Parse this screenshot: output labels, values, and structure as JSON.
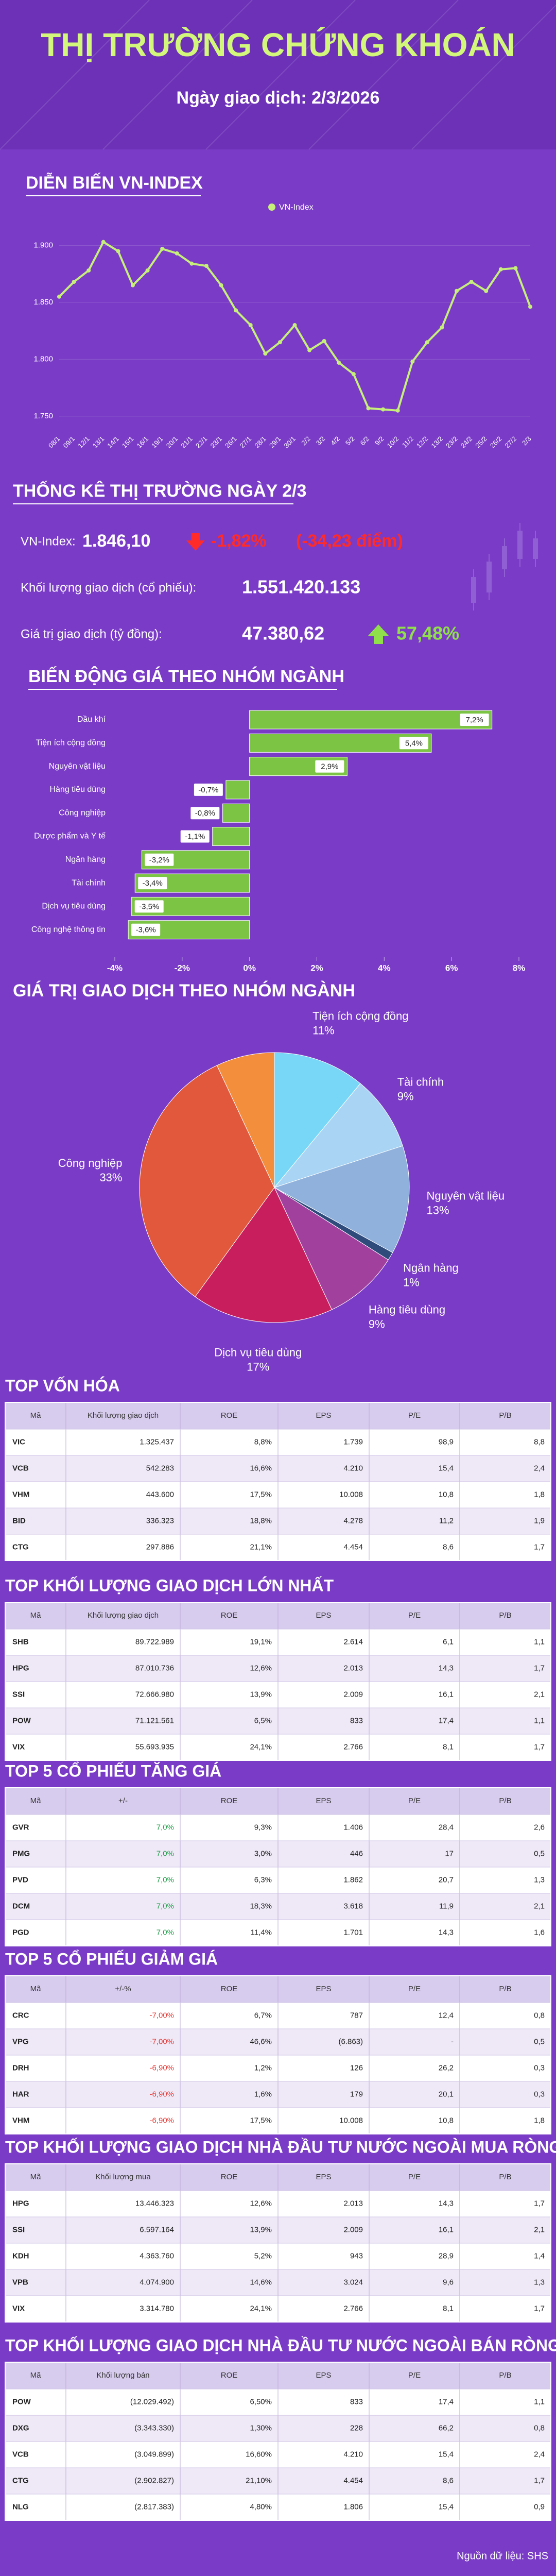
{
  "header": {
    "title": "THỊ TRƯỜNG CHỨNG KHOÁN",
    "date": "Ngày giao dịch: 2/3/2026"
  },
  "chart_data": [
    {
      "type": "line",
      "title": "DIỄN BIẾN VN-INDEX",
      "x": [
        "08/1",
        "09/1",
        "12/1",
        "13/1",
        "14/1",
        "15/1",
        "16/1",
        "19/1",
        "20/1",
        "21/1",
        "22/1",
        "23/1",
        "26/1",
        "27/1",
        "28/1",
        "29/1",
        "30/1",
        "2/2",
        "3/2",
        "4/2",
        "5/2",
        "6/2",
        "9/2",
        "10/2",
        "11/2",
        "12/2",
        "13/2",
        "23/2",
        "24/2",
        "25/2",
        "26/2",
        "27/2",
        "2/3"
      ],
      "series": [
        {
          "name": "VN-Index",
          "color": "#c6f07a",
          "values": [
            1855,
            1868,
            1878,
            1903,
            1895,
            1865,
            1878,
            1897,
            1893,
            1884,
            1882,
            1865,
            1843,
            1830,
            1805,
            1815,
            1830,
            1808,
            1816,
            1797,
            1787,
            1757,
            1756,
            1755,
            1798,
            1815,
            1828,
            1860,
            1868,
            1860,
            1879,
            1880,
            1846.1
          ]
        }
      ],
      "ylim": [
        1740,
        1930
      ],
      "yticks": [
        {
          "value": 1750,
          "label": "1.750"
        },
        {
          "value": 1800,
          "label": "1.800"
        },
        {
          "value": 1850,
          "label": "1.850"
        },
        {
          "value": 1900,
          "label": "1.900"
        }
      ],
      "grid": true,
      "legend": "top"
    },
    {
      "type": "bar",
      "orientation": "horizontal",
      "title": "BIẾN ĐỘNG GIÁ THEO NHÓM NGÀNH",
      "categories": [
        "Dầu khí",
        "Tiện ích cộng đồng",
        "Nguyên vật liệu",
        "Hàng tiêu dùng",
        "Công nghiệp",
        "Dược phẩm và Y tế",
        "Ngân hàng",
        "Tài chính",
        "Dịch vụ tiêu dùng",
        "Công nghệ thông tin"
      ],
      "values": [
        7.2,
        5.4,
        2.9,
        -0.7,
        -0.8,
        -1.1,
        -3.2,
        -3.4,
        -3.5,
        -3.6
      ],
      "value_labels": [
        "7,2%",
        "5,4%",
        "2,9%",
        "-0,7%",
        "-0,8%",
        "-1,1%",
        "-3,2%",
        "-3,4%",
        "-3,5%",
        "-3,6%"
      ],
      "color": "#7cc444",
      "xlim": [
        -4,
        8
      ],
      "xticks": [
        {
          "value": -4,
          "label": "-4%"
        },
        {
          "value": -2,
          "label": "-2%"
        },
        {
          "value": 0,
          "label": "0%"
        },
        {
          "value": 2,
          "label": "2%"
        },
        {
          "value": 4,
          "label": "4%"
        },
        {
          "value": 6,
          "label": "6%"
        },
        {
          "value": 8,
          "label": "8%"
        }
      ]
    },
    {
      "type": "pie",
      "title": "GIÁ TRỊ GIAO DỊCH THEO NHÓM NGÀNH",
      "categories": [
        "Tiện ích cộng đồng",
        "Tài chính",
        "Nguyên vật liệu",
        "Ngân hàng",
        "Hàng tiêu dùng",
        "Dịch vụ tiêu dùng",
        "Công nghiệp",
        null
      ],
      "values": [
        11,
        9,
        13,
        1,
        9,
        17,
        33,
        7
      ],
      "value_labels": [
        "11%",
        "9%",
        "13%",
        "1%",
        "9%",
        "17%",
        "33%",
        null
      ],
      "colors": [
        "#78d6f6",
        "#a9d4f4",
        "#8fb1dc",
        "#2f4b7c",
        "#a2409e",
        "#c81e5e",
        "#e2583c",
        "#f28e3c"
      ]
    }
  ],
  "stats": {
    "title": "THỐNG KÊ THỊ TRƯỜNG NGÀY 2/3",
    "rows": [
      {
        "label": "VN-Index:",
        "value": "1.846,10",
        "change": "-1,82%",
        "points": "(-34,23 điểm)",
        "change_color": "#ff2a2a"
      },
      {
        "label": "Khối lượng giao dịch (cổ phiếu):",
        "value": "1.551.420.133"
      },
      {
        "label": "Giá trị giao dịch (tỷ đồng):",
        "value": "47.380,62",
        "change": "57,48%",
        "change_color": "#8fe04a"
      }
    ]
  },
  "tables": [
    {
      "title": "TOP VỐN HÓA",
      "headers": [
        "Mã",
        "Khối lượng giao dịch",
        "ROE",
        "EPS",
        "P/E",
        "P/B"
      ],
      "rows": [
        [
          "VIC",
          "1.325.437",
          "8,8%",
          "1.739",
          "98,9",
          "8,8"
        ],
        [
          "VCB",
          "542.283",
          "16,6%",
          "4.210",
          "15,4",
          "2,4"
        ],
        [
          "VHM",
          "443.600",
          "17,5%",
          "10.008",
          "10,8",
          "1,8"
        ],
        [
          "BID",
          "336.323",
          "18,8%",
          "4.278",
          "11,2",
          "1,9"
        ],
        [
          "CTG",
          "297.886",
          "21,1%",
          "4.454",
          "8,6",
          "1,7"
        ]
      ]
    },
    {
      "title": "TOP KHỐI LƯỢNG GIAO DỊCH LỚN NHẤT",
      "headers": [
        "Mã",
        "Khối lượng giao dịch",
        "ROE",
        "EPS",
        "P/E",
        "P/B"
      ],
      "rows": [
        [
          "SHB",
          "89.722.989",
          "19,1%",
          "2.614",
          "6,1",
          "1,1"
        ],
        [
          "HPG",
          "87.010.736",
          "12,6%",
          "2.013",
          "14,3",
          "1,7"
        ],
        [
          "SSI",
          "72.666.980",
          "13,9%",
          "2.009",
          "16,1",
          "2,1"
        ],
        [
          "POW",
          "71.121.561",
          "6,5%",
          "833",
          "17,4",
          "1,1"
        ],
        [
          "VIX",
          "55.693.935",
          "24,1%",
          "2.766",
          "8,1",
          "1,7"
        ]
      ]
    },
    {
      "title": "TOP 5 CỔ PHIẾU TĂNG GIÁ",
      "headers": [
        "Mã",
        "+/-",
        "ROE",
        "EPS",
        "P/E",
        "P/B"
      ],
      "change_color": "#1f9e48",
      "rows": [
        [
          "GVR",
          "7,0%",
          "9,3%",
          "1.406",
          "28,4",
          "2,6"
        ],
        [
          "PMG",
          "7,0%",
          "3,0%",
          "446",
          "17",
          "0,5"
        ],
        [
          "PVD",
          "7,0%",
          "6,3%",
          "1.862",
          "20,7",
          "1,3"
        ],
        [
          "DCM",
          "7,0%",
          "18,3%",
          "3.618",
          "11,9",
          "2,1"
        ],
        [
          "PGD",
          "7,0%",
          "11,4%",
          "1.701",
          "14,3",
          "1,6"
        ]
      ]
    },
    {
      "title": "TOP 5 CỔ PHIẾU GIẢM GIÁ",
      "headers": [
        "Mã",
        "+/-%",
        "ROE",
        "EPS",
        "P/E",
        "P/B"
      ],
      "change_color": "#e53935",
      "rows": [
        [
          "CRC",
          "-7,00%",
          "6,7%",
          "787",
          "12,4",
          "0,8"
        ],
        [
          "VPG",
          "-7,00%",
          "46,6%",
          "(6.863)",
          "-",
          "0,5"
        ],
        [
          "DRH",
          "-6,90%",
          "1,2%",
          "126",
          "26,2",
          "0,3"
        ],
        [
          "HAR",
          "-6,90%",
          "1,6%",
          "179",
          "20,1",
          "0,3"
        ],
        [
          "VHM",
          "-6,90%",
          "17,5%",
          "10.008",
          "10,8",
          "1,8"
        ]
      ]
    },
    {
      "title": "TOP KHỐI LƯỢNG GIAO DỊCH NHÀ ĐẦU TƯ NƯỚC NGOÀI MUA RÒNG",
      "headers": [
        "Mã",
        "Khối lượng mua",
        "ROE",
        "EPS",
        "P/E",
        "P/B"
      ],
      "rows": [
        [
          "HPG",
          "13.446.323",
          "12,6%",
          "2.013",
          "14,3",
          "1,7"
        ],
        [
          "SSI",
          "6.597.164",
          "13,9%",
          "2.009",
          "16,1",
          "2,1"
        ],
        [
          "KDH",
          "4.363.760",
          "5,2%",
          "943",
          "28,9",
          "1,4"
        ],
        [
          "VPB",
          "4.074.900",
          "14,6%",
          "3.024",
          "9,6",
          "1,3"
        ],
        [
          "VIX",
          "3.314.780",
          "24,1%",
          "2.766",
          "8,1",
          "1,7"
        ]
      ]
    },
    {
      "title": "TOP KHỐI LƯỢNG GIAO DỊCH NHÀ ĐẦU TƯ NƯỚC NGOÀI BÁN RÒNG",
      "headers": [
        "Mã",
        "Khối lượng bán",
        "ROE",
        "EPS",
        "P/E",
        "P/B"
      ],
      "rows": [
        [
          "POW",
          "(12.029.492)",
          "6,50%",
          "833",
          "17,4",
          "1,1"
        ],
        [
          "DXG",
          "(3.343.330)",
          "1,30%",
          "228",
          "66,2",
          "0,8"
        ],
        [
          "VCB",
          "(3.049.899)",
          "16,60%",
          "4.210",
          "15,4",
          "2,4"
        ],
        [
          "CTG",
          "(2.902.827)",
          "21,10%",
          "4.454",
          "8,6",
          "1,7"
        ],
        [
          "NLG",
          "(2.817.383)",
          "4,80%",
          "1.806",
          "15,4",
          "0,9"
        ]
      ]
    }
  ],
  "source": "Nguồn dữ liệu: SHS"
}
